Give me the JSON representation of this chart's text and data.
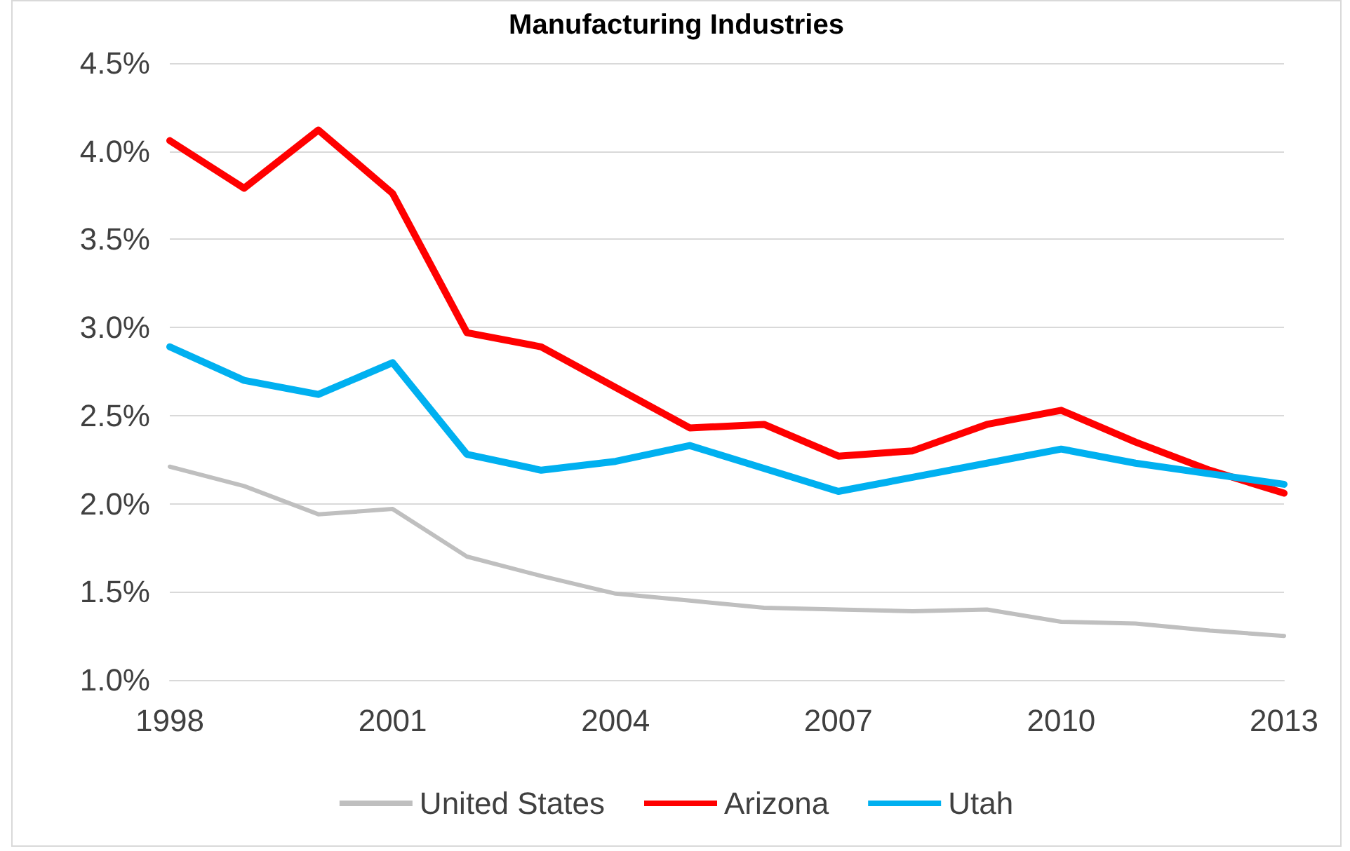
{
  "chart_data": {
    "type": "line",
    "title": "Manufacturing Industries",
    "categories": [
      "1998",
      null,
      null,
      "2001",
      null,
      null,
      "2004",
      null,
      null,
      "2007",
      null,
      null,
      "2010",
      null,
      null,
      "2013"
    ],
    "series": [
      {
        "name": "United States",
        "color": "#bfbfbf",
        "values": [
          2.21,
          2.1,
          1.94,
          1.97,
          1.7,
          1.59,
          1.49,
          1.45,
          1.41,
          1.4,
          1.39,
          1.4,
          1.33,
          1.32,
          1.28,
          1.25
        ]
      },
      {
        "name": "Arizona",
        "color": "#ff0000",
        "values": [
          4.06,
          3.79,
          4.12,
          3.76,
          2.97,
          2.89,
          2.66,
          2.43,
          2.45,
          2.27,
          2.3,
          2.45,
          2.53,
          2.35,
          2.19,
          2.06
        ]
      },
      {
        "name": "Utah",
        "color": "#00b0f0",
        "values": [
          2.89,
          2.7,
          2.62,
          2.8,
          2.28,
          2.19,
          2.24,
          2.33,
          2.2,
          2.07,
          2.15,
          2.23,
          2.31,
          2.23,
          2.17,
          2.11
        ]
      }
    ],
    "ylim": [
      1,
      4.5
    ],
    "yticks": [
      {
        "value": 1,
        "label": "1.0%"
      },
      {
        "value": 1.5,
        "label": "1.5%"
      },
      {
        "value": 2,
        "label": "2.0%"
      },
      {
        "value": 2.5,
        "label": "2.5%"
      },
      {
        "value": 3,
        "label": "3.0%"
      },
      {
        "value": 3.5,
        "label": "3.5%"
      },
      {
        "value": 4,
        "label": "4.0%"
      },
      {
        "value": 4.5,
        "label": "4.5%"
      }
    ],
    "grid": "y",
    "legend": "bottom",
    "marker": "none",
    "line_style": "solid"
  }
}
